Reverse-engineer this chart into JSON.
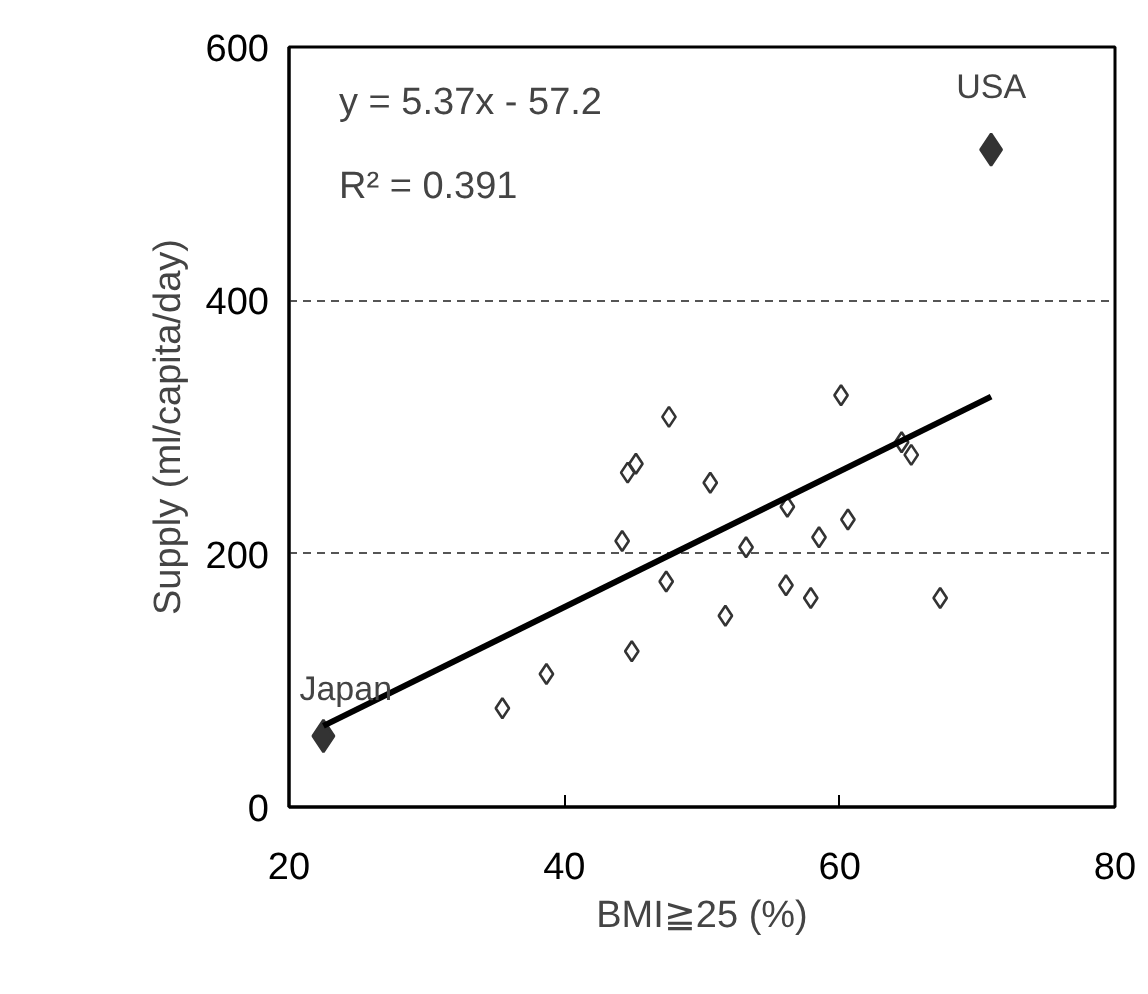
{
  "chart_data": {
    "type": "scatter",
    "xlabel": "BMI≧25 (%)",
    "ylabel": "Supply (ml/capita/day)",
    "xlim": [
      20,
      80
    ],
    "ylim": [
      0,
      600
    ],
    "xticks": [
      20,
      40,
      60,
      80
    ],
    "yticks": [
      0,
      200,
      400,
      600
    ],
    "grid": "y",
    "marker": "diamond",
    "series": [
      {
        "color": "#333333",
        "x": [
          35.5,
          38.7,
          44.9,
          44.2,
          44.6,
          45.2,
          47.6,
          47.4,
          50.6,
          51.7,
          53.2,
          56.2,
          56.1,
          57.9,
          58.5,
          60.1,
          60.6,
          64.5,
          65.2,
          67.3
        ],
        "values": [
          78,
          105,
          123,
          210,
          264,
          271,
          308,
          178,
          256,
          151,
          205,
          237,
          175,
          165,
          213,
          325,
          227,
          288,
          278,
          165
        ]
      },
      {
        "color": "#333333",
        "x": [
          22.5,
          71.0
        ],
        "values": [
          56,
          519
        ]
      },
      {
        "type": "line",
        "marker": "none",
        "color": "#000000",
        "x": [
          22.5,
          71.0
        ],
        "values": [
          64,
          324
        ]
      }
    ],
    "annotations": [
      "y = 5.37x - 57.2",
      "R² = 0.391",
      {
        "text": "Japan",
        "x": 22.5,
        "y": 56
      },
      {
        "text": "USA",
        "x": 71.0,
        "y": 519
      }
    ]
  }
}
